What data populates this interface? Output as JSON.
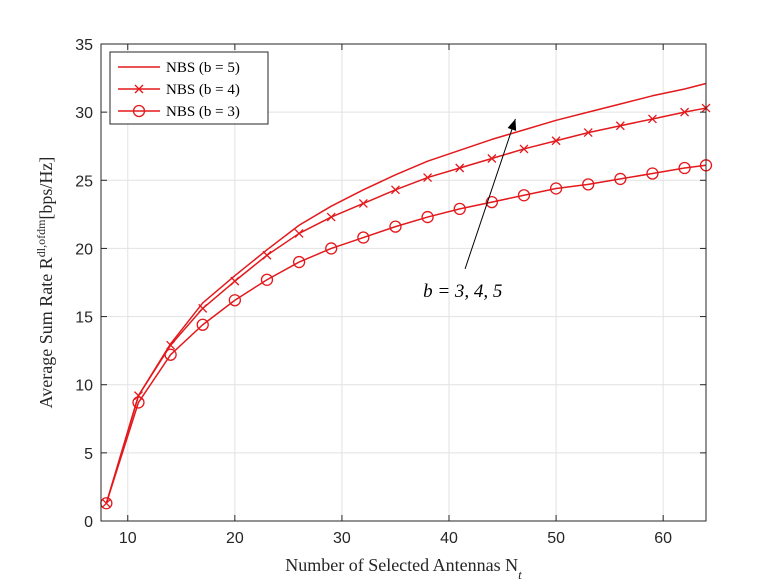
{
  "chart_data": {
    "type": "line",
    "xlabel": "Number of Selected Antennas N",
    "xlabel_sub": "t",
    "ylabel": "Average Sum Rate R",
    "ylabel_sup": "dl,ofdm",
    "ylabel_unit": "[bps/Hz]",
    "xlim": [
      7.5,
      64
    ],
    "ylim": [
      0,
      35
    ],
    "xticks": [
      10,
      20,
      30,
      40,
      50,
      60
    ],
    "yticks": [
      0,
      5,
      10,
      15,
      20,
      25,
      30,
      35
    ],
    "grid": true,
    "legend_position": "top-left",
    "color": "#e3191c",
    "x": [
      8,
      11,
      14,
      17,
      20,
      23,
      26,
      29,
      32,
      35,
      38,
      41,
      44,
      47,
      50,
      53,
      56,
      59,
      62,
      64
    ],
    "series": [
      {
        "name": "NBS (b = 5)",
        "marker": "none",
        "values": [
          1.3,
          9.2,
          13.0,
          16.0,
          18.0,
          19.9,
          21.7,
          23.1,
          24.3,
          25.4,
          26.4,
          27.2,
          28.0,
          28.7,
          29.4,
          30.0,
          30.6,
          31.2,
          31.7,
          32.1
        ]
      },
      {
        "name": "NBS (b = 4)",
        "marker": "x",
        "values": [
          1.3,
          9.2,
          12.9,
          15.6,
          17.6,
          19.5,
          21.1,
          22.3,
          23.3,
          24.3,
          25.2,
          25.9,
          26.6,
          27.3,
          27.9,
          28.5,
          29.0,
          29.5,
          30.0,
          30.3
        ]
      },
      {
        "name": "NBS (b = 3)",
        "marker": "o",
        "values": [
          1.3,
          8.7,
          12.2,
          14.4,
          16.2,
          17.7,
          19.0,
          20.0,
          20.8,
          21.6,
          22.3,
          22.9,
          23.4,
          23.9,
          24.4,
          24.7,
          25.1,
          25.5,
          25.9,
          26.1
        ]
      }
    ],
    "annotations": [
      {
        "text": "b = 3, 4, 5",
        "x_from": 41.5,
        "y_from": 18.5,
        "x_to": 46.2,
        "y_to": 29.5
      }
    ]
  }
}
